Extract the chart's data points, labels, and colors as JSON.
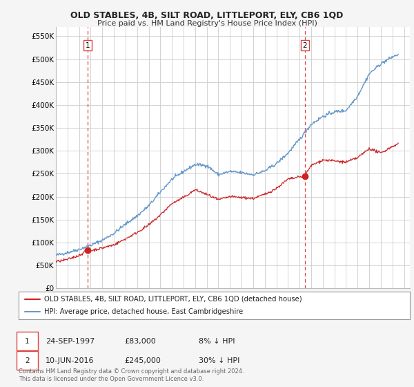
{
  "title": "OLD STABLES, 4B, SILT ROAD, LITTLEPORT, ELY, CB6 1QD",
  "subtitle": "Price paid vs. HM Land Registry's House Price Index (HPI)",
  "ylabel_ticks": [
    "£0",
    "£50K",
    "£100K",
    "£150K",
    "£200K",
    "£250K",
    "£300K",
    "£350K",
    "£400K",
    "£450K",
    "£500K",
    "£550K"
  ],
  "ytick_values": [
    0,
    50000,
    100000,
    150000,
    200000,
    250000,
    300000,
    350000,
    400000,
    450000,
    500000,
    550000
  ],
  "ylim": [
    0,
    570000
  ],
  "xlim_start": 1995.0,
  "xlim_end": 2025.5,
  "sale1_date": 1997.73,
  "sale1_price": 83000,
  "sale1_label": "1",
  "sale2_date": 2016.44,
  "sale2_price": 245000,
  "sale2_label": "2",
  "legend_line1": "OLD STABLES, 4B, SILT ROAD, LITTLEPORT, ELY, CB6 1QD (detached house)",
  "legend_line2": "HPI: Average price, detached house, East Cambridgeshire",
  "annot1_date": "24-SEP-1997",
  "annot1_price": "£83,000",
  "annot1_hpi": "8% ↓ HPI",
  "annot2_date": "10-JUN-2016",
  "annot2_price": "£245,000",
  "annot2_hpi": "30% ↓ HPI",
  "footnote": "Contains HM Land Registry data © Crown copyright and database right 2024.\nThis data is licensed under the Open Government Licence v3.0.",
  "hpi_color": "#6699cc",
  "price_color": "#cc2222",
  "sale_marker_color": "#cc2222",
  "dashed_line_color": "#dd4444",
  "background_color": "#f5f5f5",
  "plot_bg_color": "#ffffff",
  "grid_color": "#cccccc"
}
